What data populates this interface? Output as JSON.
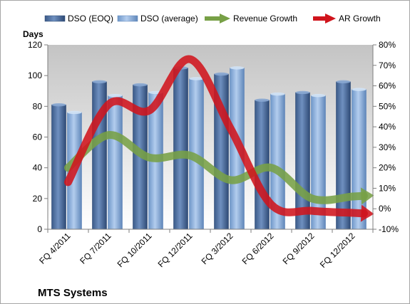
{
  "chart_data": {
    "type": "bar",
    "title": "MTS Systems",
    "categories": [
      "FQ 4/2011",
      "FQ 7/2011",
      "FQ 10/2011",
      "FQ 12/2011",
      "FQ 3/2012",
      "FQ 6/2012",
      "FQ 9/2012",
      "FQ 12/2012"
    ],
    "y_unit_label": "Days",
    "ylim": [
      0,
      120
    ],
    "yticks": [
      0,
      20,
      40,
      60,
      80,
      100,
      120
    ],
    "y2lim": [
      -10,
      80
    ],
    "y2ticks": [
      "-10%",
      "0%",
      "10%",
      "20%",
      "30%",
      "40%",
      "50%",
      "60%",
      "70%",
      "80%"
    ],
    "y2tick_values": [
      -10,
      0,
      10,
      20,
      30,
      40,
      50,
      60,
      70,
      80
    ],
    "grid": false,
    "legend_position": "top",
    "series": [
      {
        "name": "DSO (EOQ)",
        "kind": "bar",
        "axis": "left",
        "color": "#4a6fa5",
        "values": [
          81,
          96,
          94,
          105,
          101,
          84,
          89,
          96
        ]
      },
      {
        "name": "DSO (average)",
        "kind": "bar",
        "axis": "left",
        "color": "#8eb4e3",
        "values": [
          76,
          87,
          89,
          98,
          105,
          88,
          87,
          91
        ]
      },
      {
        "name": "Revenue Growth",
        "kind": "line-arrow",
        "axis": "right",
        "color": "#77a046",
        "values": [
          20,
          36,
          25,
          26,
          14,
          20,
          5,
          6
        ]
      },
      {
        "name": "AR Growth",
        "kind": "line-arrow",
        "axis": "right",
        "color": "#d0141c",
        "values": [
          13,
          51,
          48,
          73,
          39,
          2,
          -1,
          -2
        ]
      }
    ]
  }
}
